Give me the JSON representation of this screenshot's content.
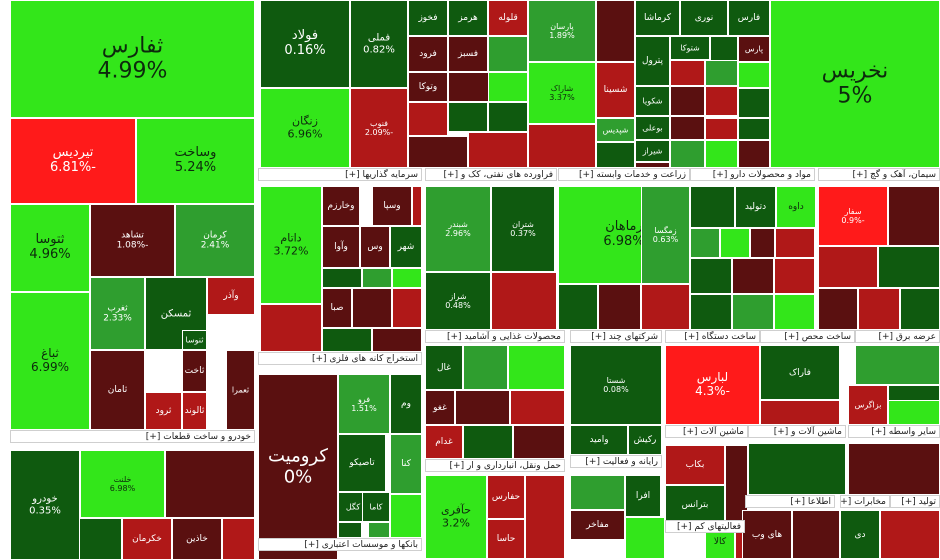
{
  "chart_data": {
    "type": "heatmap",
    "colors": {
      "dark_red": "#5a1010",
      "red": "#b01818",
      "bright_red": "#ff1a1a",
      "dark_green": "#0f5a0f",
      "green": "#2f9e2f",
      "bright_green": "#33e61a"
    },
    "sectors": [
      "خودرو و ساخت قطعات [+]",
      "سرمایه گذاریها [+]",
      "استخراج کانه های فلزی [+]",
      "بانکها و موسسات اعتباری [+]",
      "فراورده های نفتی، کک و [+]",
      "زراعت و خدمات وابسته [+]",
      "مواد و محصولات دارو [+]",
      "سیمان، آهک و گچ [+]",
      "محصولات غذایی و آشامید [+]",
      "شرکتهای چند [+]",
      "ساخت دستگاه [+]",
      "ساخت محص [+]",
      "عرضه برق [+]",
      "حمل ونقل، انبارداری و ار [+]",
      "رایانه و فعالیت [+]",
      "ماشین آلات [+]",
      "ماشین آلات و [+]",
      "سایر واسطه [+]",
      "فعالیتهای کم [+]",
      "اطلاعا [+]",
      "مخابرات [+]",
      "تولید [+]"
    ],
    "tiles": [
      {
        "name": "ثفارس",
        "change": "4.99%",
        "color": "bright_green"
      },
      {
        "name": "تیردیس",
        "change": "-6.81%",
        "color": "bright_red"
      },
      {
        "name": "وساخت",
        "change": "5.24%",
        "color": "bright_green"
      },
      {
        "name": "ثتوسا",
        "change": "4.96%",
        "color": "bright_green"
      },
      {
        "name": "تشاهد",
        "change": "-1.08%",
        "color": "dark_red"
      },
      {
        "name": "کرمان",
        "change": "2.41%",
        "color": "green"
      },
      {
        "name": "ثباغ",
        "change": "6.99%",
        "color": "bright_green"
      },
      {
        "name": "ثغرب",
        "change": "2.33%",
        "color": "green"
      },
      {
        "name": "ثمسکن",
        "change": "",
        "color": "dark_green"
      },
      {
        "name": "ثامان",
        "change": "",
        "color": "dark_red"
      },
      {
        "name": "ثاخت",
        "change": "",
        "color": "dark_red"
      },
      {
        "name": "ثالوند",
        "change": "",
        "color": "red"
      },
      {
        "name": "ثرود",
        "change": "",
        "color": "red"
      },
      {
        "name": "ثنوسا",
        "change": "",
        "color": "dark_green"
      },
      {
        "name": "وآذر",
        "change": "",
        "color": "red"
      },
      {
        "name": "ثعمرا",
        "change": "",
        "color": "dark_red"
      },
      {
        "name": "فولاد",
        "change": "0.16%",
        "color": "dark_green"
      },
      {
        "name": "فملی",
        "change": "0.82%",
        "color": "dark_green"
      },
      {
        "name": "زنگان",
        "change": "6.96%",
        "color": "bright_green"
      },
      {
        "name": "فخوز",
        "change": "",
        "color": "dark_green"
      },
      {
        "name": "هرمز",
        "change": "",
        "color": "dark_green"
      },
      {
        "name": "قلوله",
        "change": "",
        "color": "red"
      },
      {
        "name": "فرود",
        "change": "",
        "color": "dark_red"
      },
      {
        "name": "فسبز",
        "change": "",
        "color": "dark_red"
      },
      {
        "name": "وتوکا",
        "change": "",
        "color": "dark_red"
      },
      {
        "name": "فنوب",
        "change": "-2.09%",
        "color": "red"
      },
      {
        "name": "فارس",
        "change": "",
        "color": "dark_green"
      },
      {
        "name": "نوری",
        "change": "",
        "color": "dark_green"
      },
      {
        "name": "کرماشا",
        "change": "",
        "color": "dark_green"
      },
      {
        "name": "پارس",
        "change": "",
        "color": "dark_red"
      },
      {
        "name": "شتوکا",
        "change": "",
        "color": "dark_green"
      },
      {
        "name": "پترول",
        "change": "",
        "color": "dark_green"
      },
      {
        "name": "شکویا",
        "change": "",
        "color": "dark_green"
      },
      {
        "name": "شسینا",
        "change": "",
        "color": "red"
      },
      {
        "name": "شپدیس",
        "change": "",
        "color": "green"
      },
      {
        "name": "بوعلی",
        "change": "",
        "color": "dark_green"
      },
      {
        "name": "شیراز",
        "change": "",
        "color": "dark_green"
      },
      {
        "name": "پارسان",
        "change": "1.89%",
        "color": "green"
      },
      {
        "name": "شاراک",
        "change": "3.37%",
        "color": "bright_green"
      },
      {
        "name": "نخریس",
        "change": "5%",
        "color": "bright_green"
      },
      {
        "name": "داتام",
        "change": "3.72%",
        "color": "bright_green"
      },
      {
        "name": "وخارزم",
        "change": "",
        "color": "dark_red"
      },
      {
        "name": "وسپا",
        "change": "",
        "color": "dark_red"
      },
      {
        "name": "وآوا",
        "change": "",
        "color": "dark_red"
      },
      {
        "name": "وس",
        "change": "",
        "color": "dark_red"
      },
      {
        "name": "شهر",
        "change": "",
        "color": "dark_green"
      },
      {
        "name": "صبا",
        "change": "",
        "color": "dark_red"
      },
      {
        "name": "کرومیت",
        "change": "0%",
        "color": "dark_red"
      },
      {
        "name": "فرو",
        "change": "1.51%",
        "color": "green"
      },
      {
        "name": "وم",
        "change": "",
        "color": "dark_green"
      },
      {
        "name": "تاصیکو",
        "change": "",
        "color": "dark_green"
      },
      {
        "name": "کنا",
        "change": "",
        "color": "green"
      },
      {
        "name": "کگل",
        "change": "",
        "color": "dark_green"
      },
      {
        "name": "کاما",
        "change": "",
        "color": "dark_green"
      },
      {
        "name": "شبندر",
        "change": "2.96%",
        "color": "green"
      },
      {
        "name": "شتران",
        "change": "0.37%",
        "color": "dark_green"
      },
      {
        "name": "شراز",
        "change": "0.48%",
        "color": "dark_green"
      },
      {
        "name": "رماهان",
        "change": "6.98%",
        "color": "bright_green"
      },
      {
        "name": "زمگسا",
        "change": "0.63%",
        "color": "green"
      },
      {
        "name": "داوه",
        "change": "",
        "color": "bright_green"
      },
      {
        "name": "دتولید",
        "change": "",
        "color": "dark_green"
      },
      {
        "name": "سفار",
        "change": "-0.9%",
        "color": "bright_red"
      },
      {
        "name": "خودرو",
        "change": "0.35%",
        "color": "dark_green"
      },
      {
        "name": "خلنت",
        "change": "6.98%",
        "color": "bright_green"
      },
      {
        "name": "خکرمان",
        "change": "",
        "color": "red"
      },
      {
        "name": "خاذین",
        "change": "",
        "color": "dark_red"
      },
      {
        "name": "لبارس",
        "change": "-4.3%",
        "color": "bright_red"
      },
      {
        "name": "فاراک",
        "change": "",
        "color": "dark_green"
      },
      {
        "name": "بزاگرس",
        "change": "",
        "color": "red"
      },
      {
        "name": "شستا",
        "change": "0.08%",
        "color": "dark_green"
      },
      {
        "name": "وامید",
        "change": "",
        "color": "dark_green"
      },
      {
        "name": "حآفری",
        "change": "3.2%",
        "color": "bright_green"
      },
      {
        "name": "حفارس",
        "change": "",
        "color": "red"
      },
      {
        "name": "حاسا",
        "change": "",
        "color": "red"
      },
      {
        "name": "غدام",
        "change": "",
        "color": "red"
      },
      {
        "name": "غغو",
        "change": "",
        "color": "dark_red"
      },
      {
        "name": "غال",
        "change": "",
        "color": "dark_green"
      },
      {
        "name": "رکیش",
        "change": "",
        "color": "dark_green"
      },
      {
        "name": "افرا",
        "change": "",
        "color": "dark_green"
      },
      {
        "name": "مفاخر",
        "change": "",
        "color": "dark_red"
      },
      {
        "name": "بکاب",
        "change": "",
        "color": "red"
      },
      {
        "name": "بترانس",
        "change": "",
        "color": "dark_green"
      },
      {
        "name": "کالا",
        "change": "",
        "color": "bright_green"
      },
      {
        "name": "های وب",
        "change": "",
        "color": "dark_red"
      },
      {
        "name": "دی",
        "change": "",
        "color": "dark_green"
      }
    ]
  }
}
